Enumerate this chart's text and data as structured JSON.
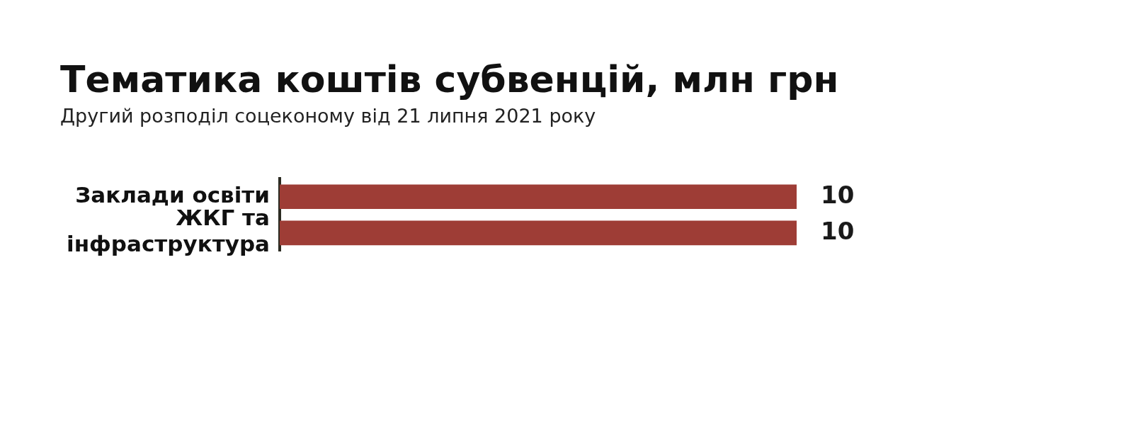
{
  "chart_data": {
    "type": "bar",
    "orientation": "horizontal",
    "title": "Тематика коштів субвенцій, млн грн",
    "subtitle": "Другий розподіл соцеконому від 21 липня 2021 року",
    "categories": [
      "Заклади освіти",
      "ЖКГ та інфраструктура"
    ],
    "values": [
      10,
      10
    ],
    "color": "#9e3d36",
    "data_labels": true
  }
}
